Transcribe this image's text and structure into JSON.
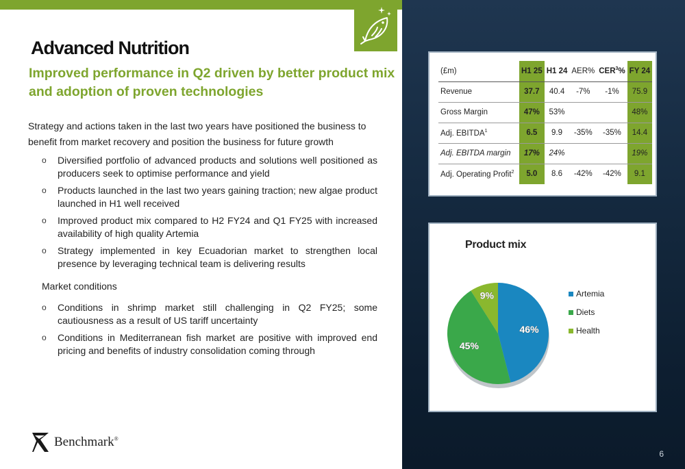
{
  "header": {
    "title": "Advanced Nutrition",
    "subtitle": "Improved performance in Q2 driven by better product mix and adoption of proven technologies",
    "icon": "fish-icon"
  },
  "intro": "Strategy and actions taken in the last two years have positioned the business to benefit from market recovery and position the business for future growth",
  "bullets_strategy": [
    "Diversified portfolio of advanced products and solutions well positioned as producers seek to optimise performance and yield",
    "Products launched in the last two years gaining traction; new algae product launched in H1 well received",
    "Improved product mix compared to H2 FY24 and Q1 FY25 with increased availability of high quality Artemia",
    "Strategy implemented in key Ecuadorian market to strengthen local presence by leveraging technical team is delivering results"
  ],
  "market_heading": "Market conditions",
  "bullets_market": [
    "Conditions in shrimp market still challenging in Q2 FY25;  some cautiousness as a result of US tariff uncertainty",
    "Conditions in Mediterranean fish market are positive with improved end pricing and benefits of industry consolidation coming through"
  ],
  "bullet_marker": "o",
  "logo": {
    "name": "Benchmark",
    "mark": "®"
  },
  "page_number": "6",
  "table": {
    "headers": {
      "label": "(£m)",
      "h125": "H1 25",
      "h124": "H1 24",
      "aer": "AER%",
      "cer": "CER",
      "cer_sup": "3",
      "cer_pct": "%",
      "fy24": "FY 24"
    },
    "rows": [
      {
        "label": "Revenue",
        "sup": "",
        "h125": "37.7",
        "h124": "40.4",
        "aer": "-7%",
        "cer": "-1%",
        "fy24": "75.9",
        "italic": false
      },
      {
        "label": "Gross Margin",
        "sup": "",
        "h125": "47%",
        "h124": "53%",
        "aer": "",
        "cer": "",
        "fy24": "48%",
        "italic": false
      },
      {
        "label": "Adj. EBITDA",
        "sup": "1",
        "h125": "6.5",
        "h124": "9.9",
        "aer": "-35%",
        "cer": "-35%",
        "fy24": "14.4",
        "italic": false
      },
      {
        "label": "Adj. EBITDA margin",
        "sup": "",
        "h125": "17%",
        "h124": "24%",
        "aer": "",
        "cer": "",
        "fy24": "19%",
        "italic": true
      },
      {
        "label": "Adj. Operating Profit",
        "sup": "2",
        "h125": "5.0",
        "h124": "8.6",
        "aer": "-42%",
        "cer": "-42%",
        "fy24": "9.1",
        "italic": false
      }
    ]
  },
  "colors": {
    "accent": "#7ea52e",
    "artemia": "#1a87c0",
    "diets": "#3aa84a",
    "health": "#8ab82e"
  },
  "chart_data": {
    "type": "pie",
    "title": "Product mix",
    "categories": [
      "Artemia",
      "Diets",
      "Health"
    ],
    "values": [
      46,
      45,
      9
    ],
    "labels": [
      "46%",
      "45%",
      "9%"
    ],
    "colors": [
      "#1a87c0",
      "#3aa84a",
      "#8ab82e"
    ],
    "legend": "right"
  }
}
